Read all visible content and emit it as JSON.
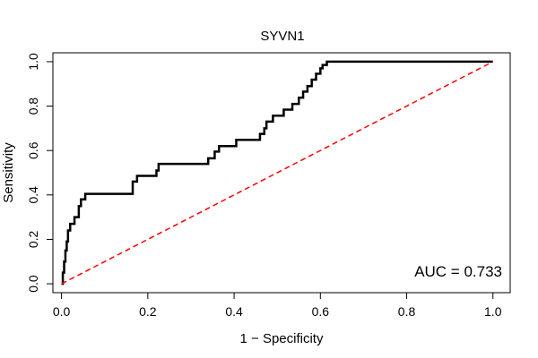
{
  "chart_data": {
    "type": "line",
    "title": "SYVN1",
    "xlabel": "1 − Specificity",
    "ylabel": "Sensitivity",
    "xlim": [
      -0.02,
      1.04
    ],
    "ylim": [
      -0.04,
      1.04
    ],
    "xticks": [
      0.0,
      0.2,
      0.4,
      0.6,
      0.8,
      1.0
    ],
    "xtick_labels": [
      "0.0",
      "0.2",
      "0.4",
      "0.6",
      "0.8",
      "1.0"
    ],
    "yticks": [
      0.0,
      0.2,
      0.4,
      0.6,
      0.8,
      1.0
    ],
    "ytick_labels": [
      "0.0",
      "0.2",
      "0.4",
      "0.6",
      "0.8",
      "1.0"
    ],
    "grid": false,
    "annotation": "AUC = 0.733",
    "colors": {
      "roc": "#000000",
      "reference": "#ff0000"
    },
    "series": [
      {
        "name": "ROC curve",
        "style": "solid",
        "x": [
          0.0,
          0.003,
          0.003,
          0.006,
          0.006,
          0.009,
          0.009,
          0.012,
          0.012,
          0.015,
          0.015,
          0.02,
          0.02,
          0.03,
          0.03,
          0.04,
          0.04,
          0.045,
          0.045,
          0.055,
          0.055,
          0.165,
          0.165,
          0.175,
          0.175,
          0.22,
          0.22,
          0.225,
          0.225,
          0.34,
          0.34,
          0.355,
          0.355,
          0.365,
          0.365,
          0.405,
          0.405,
          0.46,
          0.46,
          0.47,
          0.47,
          0.475,
          0.475,
          0.49,
          0.49,
          0.515,
          0.515,
          0.535,
          0.535,
          0.55,
          0.55,
          0.56,
          0.56,
          0.57,
          0.57,
          0.58,
          0.58,
          0.59,
          0.59,
          0.6,
          0.6,
          0.605,
          0.605,
          0.615,
          0.615,
          0.62,
          0.62,
          1.0
        ],
        "y": [
          0.0,
          0.0,
          0.05,
          0.05,
          0.1,
          0.1,
          0.15,
          0.15,
          0.19,
          0.19,
          0.24,
          0.24,
          0.27,
          0.27,
          0.3,
          0.3,
          0.35,
          0.35,
          0.38,
          0.38,
          0.405,
          0.405,
          0.46,
          0.46,
          0.486,
          0.486,
          0.51,
          0.51,
          0.54,
          0.54,
          0.565,
          0.565,
          0.595,
          0.595,
          0.62,
          0.62,
          0.648,
          0.648,
          0.675,
          0.675,
          0.7,
          0.7,
          0.73,
          0.73,
          0.757,
          0.757,
          0.784,
          0.784,
          0.81,
          0.81,
          0.838,
          0.838,
          0.865,
          0.865,
          0.89,
          0.89,
          0.919,
          0.919,
          0.946,
          0.946,
          0.97,
          0.97,
          0.985,
          0.985,
          1.0,
          1.0,
          1.0,
          1.0
        ]
      },
      {
        "name": "Reference line",
        "style": "dashed",
        "x": [
          0.0,
          1.0
        ],
        "y": [
          0.0,
          1.0
        ]
      }
    ]
  }
}
